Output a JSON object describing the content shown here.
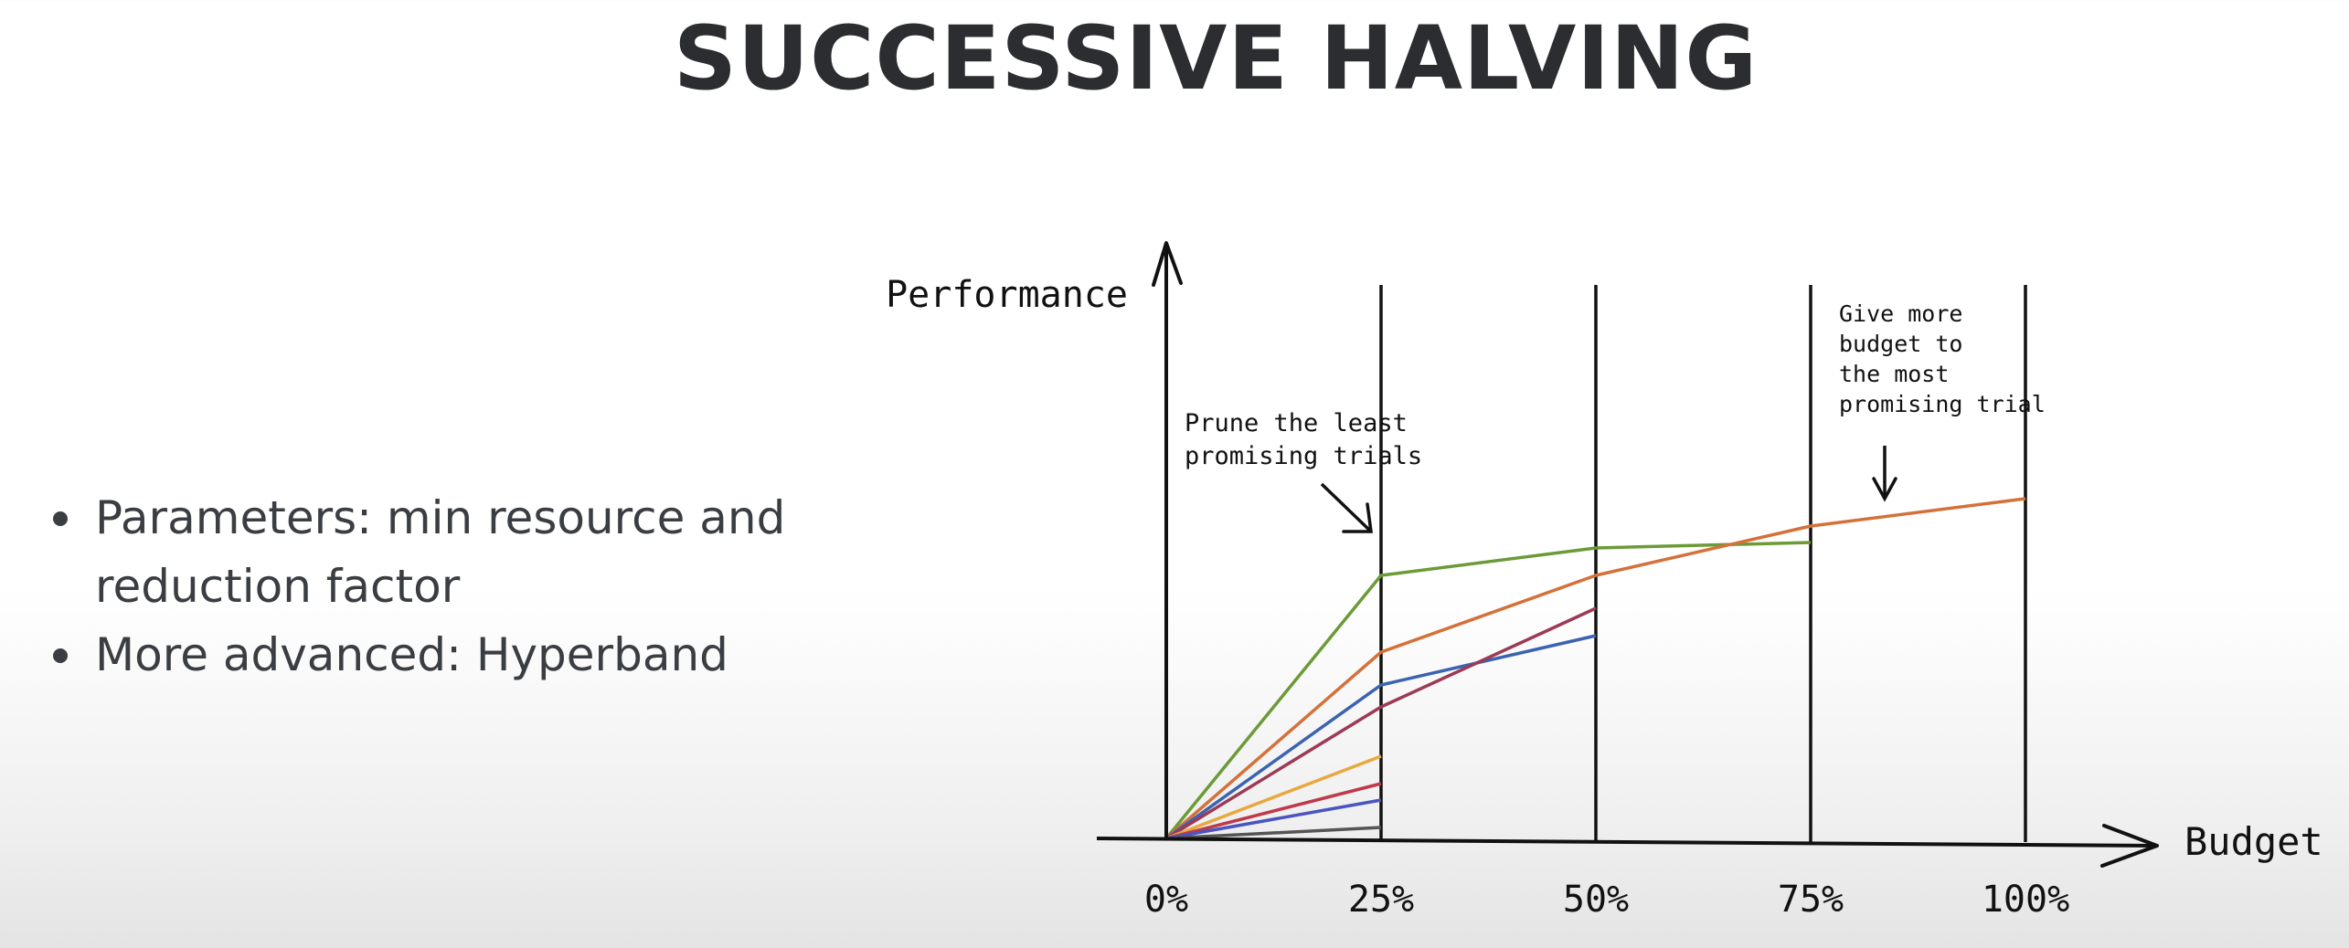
{
  "slide": {
    "title": "SUCCESSIVE HALVING",
    "bullets": [
      "Parameters: min resource and reduction factor",
      "More advanced: Hyperband"
    ]
  },
  "chart_data": {
    "type": "line",
    "xlabel": "Budget",
    "ylabel": "Performance",
    "x": [
      0,
      25,
      50,
      75,
      100
    ],
    "x_tick_labels": [
      "0%",
      "25%",
      "50%",
      "75%",
      "100%"
    ],
    "ylim": [
      0,
      100
    ],
    "annotations": [
      "Prune the least promising trials",
      "Give more budget to the most promising trial"
    ],
    "series": [
      {
        "color": "#6b9a37",
        "x": [
          0,
          25,
          50,
          75
        ],
        "y": [
          0,
          48,
          53,
          54
        ]
      },
      {
        "color": "#d4713a",
        "x": [
          0,
          25,
          50,
          75,
          100
        ],
        "y": [
          0,
          34,
          48,
          57,
          62
        ]
      },
      {
        "color": "#3b63b0",
        "x": [
          0,
          25,
          50
        ],
        "y": [
          0,
          28,
          37
        ]
      },
      {
        "color": "#9c3a55",
        "x": [
          0,
          25,
          50
        ],
        "y": [
          0,
          24,
          42
        ]
      },
      {
        "color": "#e8a840",
        "x": [
          0,
          25
        ],
        "y": [
          0,
          15
        ]
      },
      {
        "color": "#c0394a",
        "x": [
          0,
          25
        ],
        "y": [
          0,
          10
        ]
      },
      {
        "color": "#4a55c0",
        "x": [
          0,
          25
        ],
        "y": [
          0,
          7
        ]
      },
      {
        "color": "#555555",
        "x": [
          0,
          25
        ],
        "y": [
          0,
          2
        ]
      }
    ]
  }
}
